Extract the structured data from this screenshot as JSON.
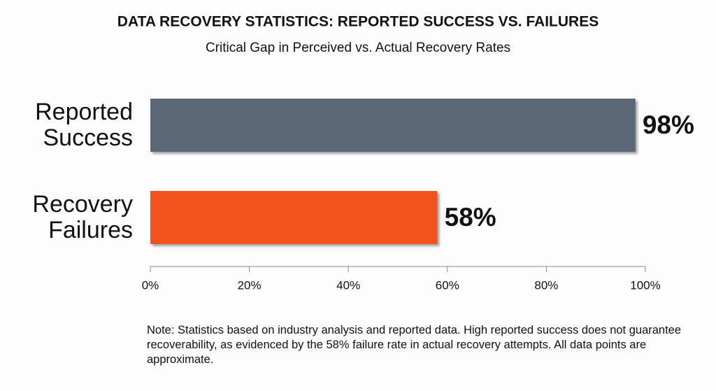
{
  "chart_data": {
    "type": "hbar",
    "title": "DATA RECOVERY STATISTICS: REPORTED SUCCESS VS. FAILURES",
    "subtitle": "Critical Gap in Perceived vs. Actual Recovery Rates",
    "categories": [
      "Reported Success",
      "Recovery Failures"
    ],
    "values": [
      98,
      58
    ],
    "value_labels": [
      "98%",
      "58%"
    ],
    "colors": [
      "#5b6877",
      "#f4511e"
    ],
    "xlim": [
      0,
      100
    ],
    "xticks": [
      {
        "value": 0,
        "label": "0%"
      },
      {
        "value": 20,
        "label": "20%"
      },
      {
        "value": 40,
        "label": "40%"
      },
      {
        "value": 60,
        "label": "60%"
      },
      {
        "value": 80,
        "label": "80%"
      },
      {
        "value": 100,
        "label": "100%"
      }
    ],
    "note": "Note: Statistics based on industry analysis and reported data. High reported success does not guarantee recoverability, as evidenced by the 58% failure rate in actual recovery attempts. All data points are approximate."
  }
}
